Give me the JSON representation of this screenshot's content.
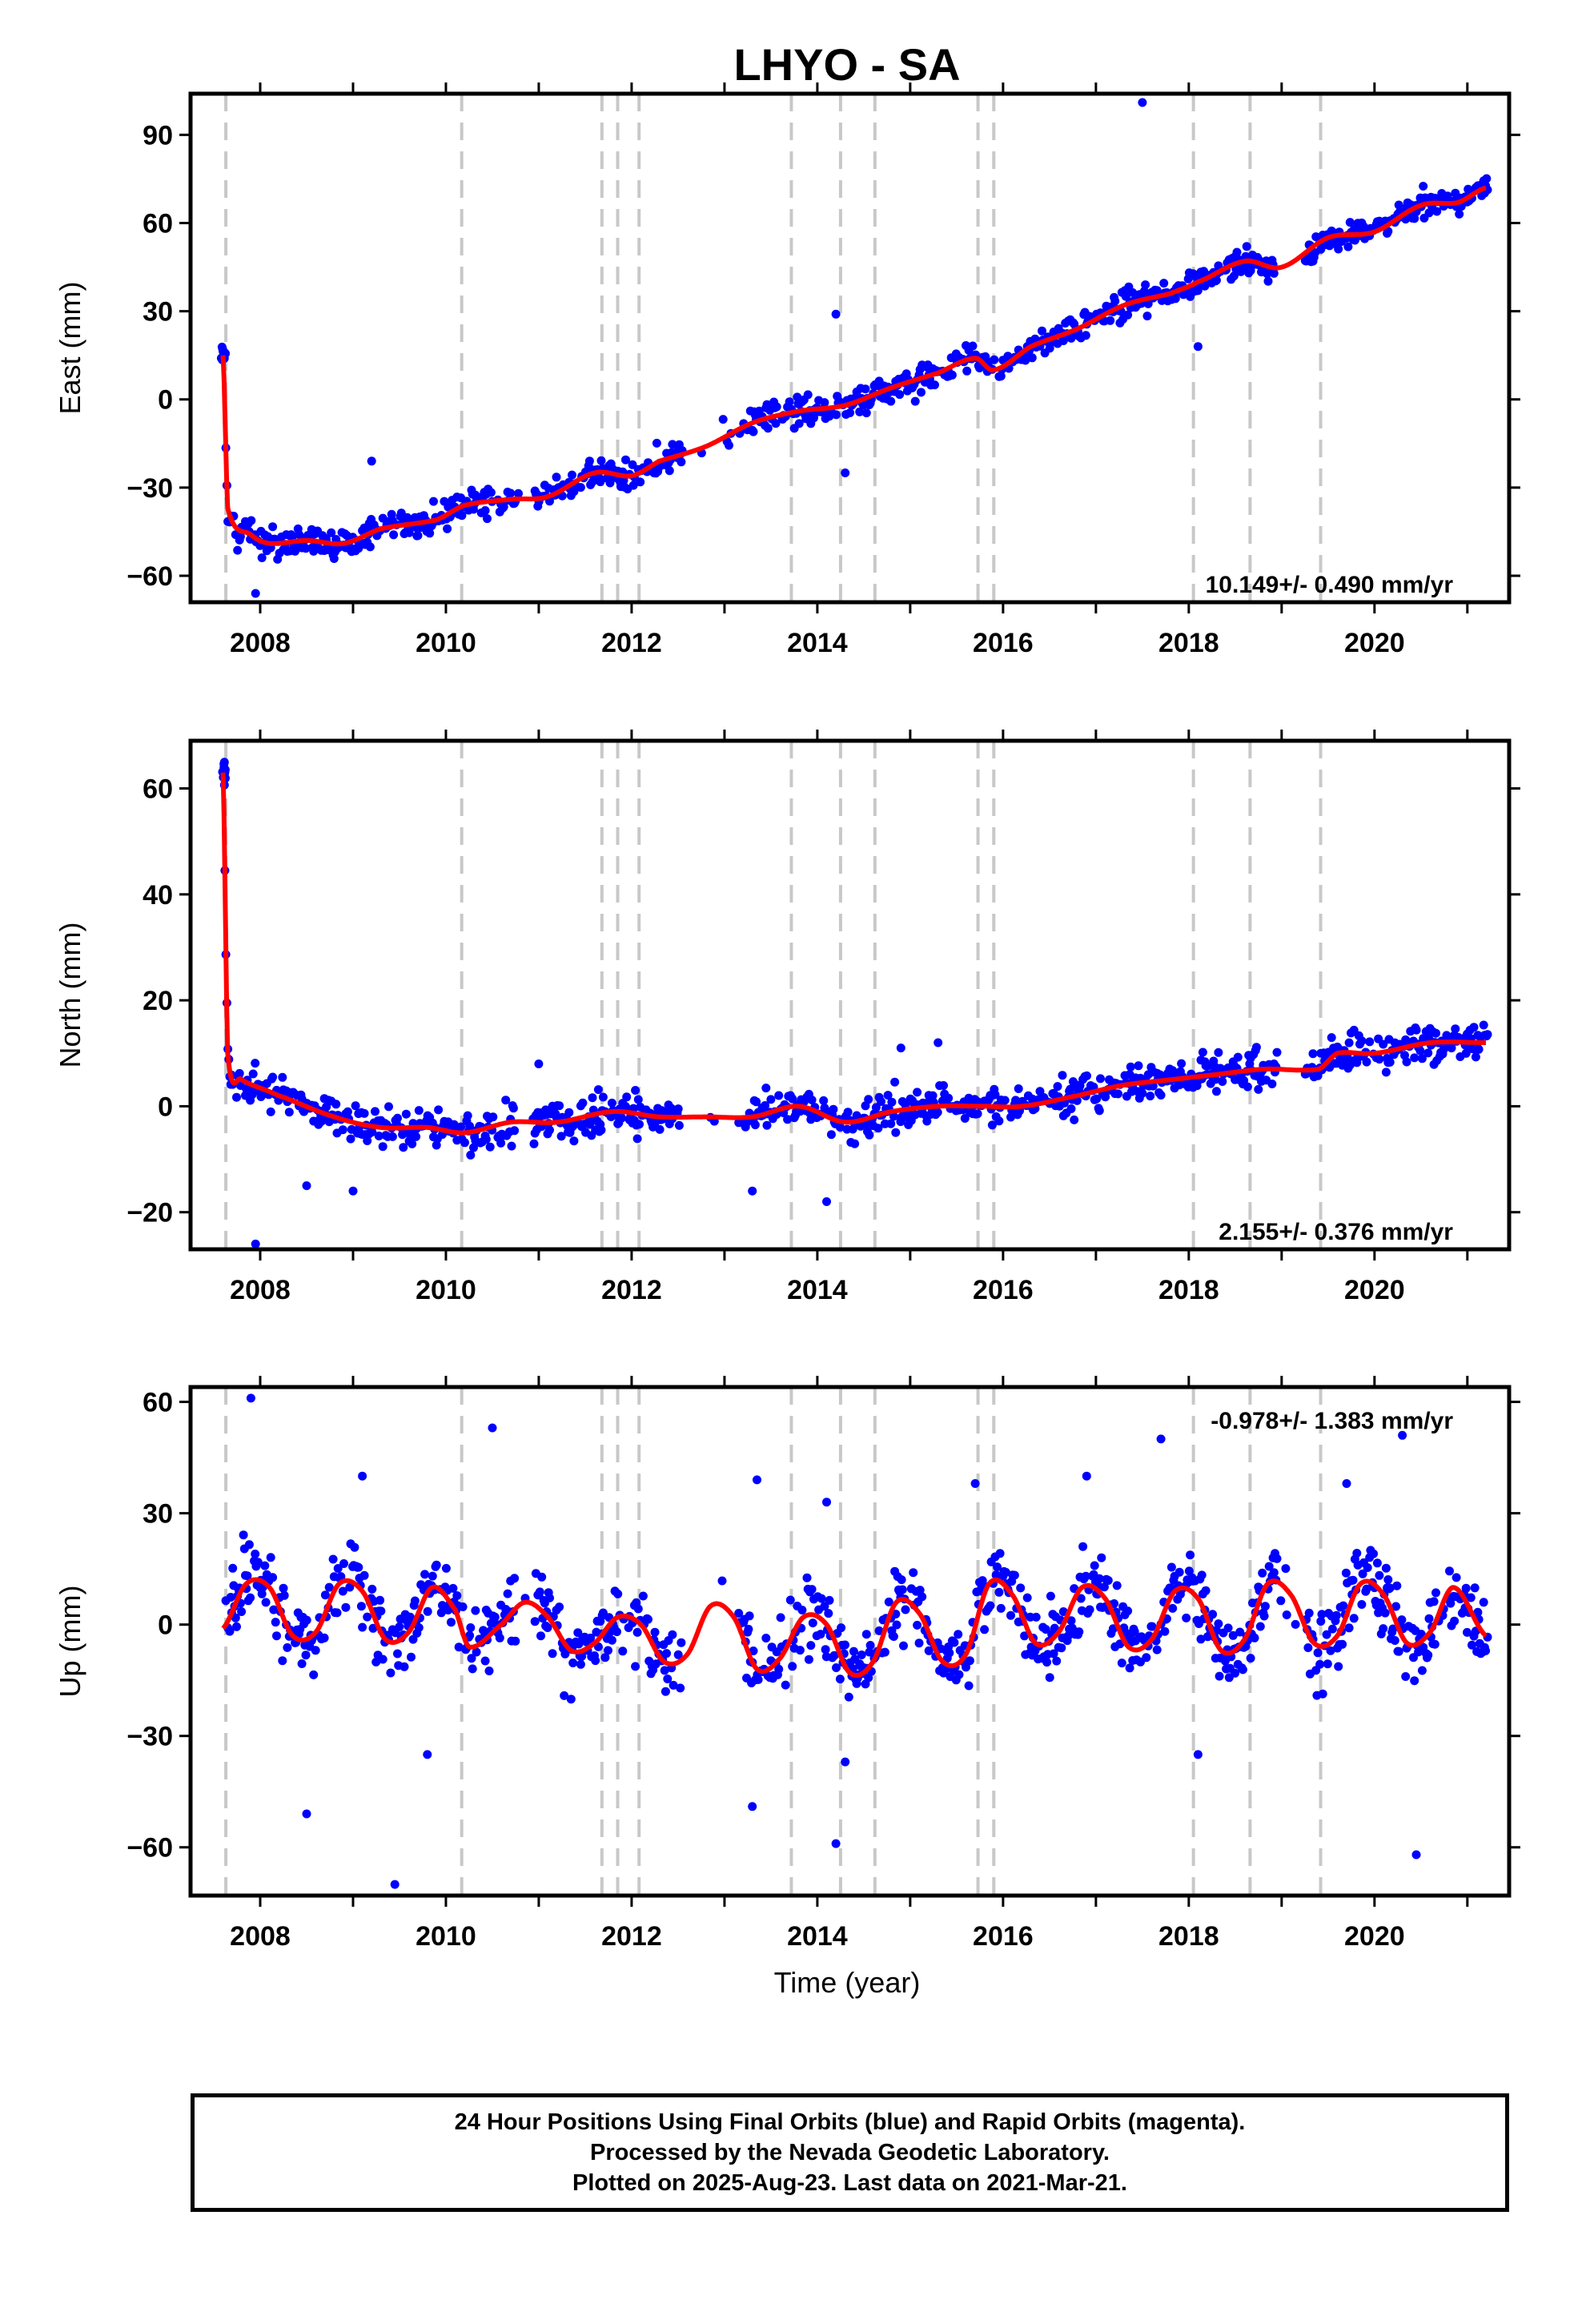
{
  "title": "LHYO - SA",
  "xlabel": "Time (year)",
  "footer": [
    "24 Hour Positions Using Final Orbits (blue) and Rapid Orbits (magenta).",
    "Processed by the Nevada Geodetic Laboratory.",
    "Plotted on 2025-Aug-23. Last data on 2021-Mar-21."
  ],
  "colors": {
    "points": "#0000ff",
    "model": "#ff0000",
    "events": "#c8c8c8",
    "frame": "#000000"
  },
  "chart_data": [
    {
      "type": "scatter",
      "component": "East",
      "ylabel": "East (mm)",
      "rate_text": "10.149+/- 0.490 mm/yr",
      "rate_position": "bottom-right",
      "xlim": [
        2007.25,
        2021.45
      ],
      "ylim": [
        -69,
        104
      ],
      "yticks": [
        90,
        60,
        30,
        0,
        -30,
        -60
      ],
      "yticklabels": [
        "90",
        "60",
        "30",
        "0",
        "−30",
        "−60"
      ],
      "xticks": [
        2008,
        2010,
        2012,
        2014,
        2016,
        2018,
        2020
      ],
      "event_lines": [
        2007.63,
        2010.17,
        2011.68,
        2011.85,
        2012.08,
        2013.72,
        2014.25,
        2014.62,
        2015.73,
        2015.9,
        2018.05,
        2018.66,
        2019.42
      ],
      "trend": {
        "rate": 10.149,
        "ref_year": 2014.0,
        "ref_value": 0.0
      },
      "model_knots": [
        [
          2007.6,
          15
        ],
        [
          2007.65,
          -37
        ],
        [
          2007.9,
          -46
        ],
        [
          2008.1,
          -49
        ],
        [
          2008.5,
          -48
        ],
        [
          2008.9,
          -49
        ],
        [
          2009.3,
          -44
        ],
        [
          2009.9,
          -41
        ],
        [
          2010.2,
          -36
        ],
        [
          2010.7,
          -34
        ],
        [
          2011.1,
          -33
        ],
        [
          2011.6,
          -25
        ],
        [
          2012.0,
          -26
        ],
        [
          2012.3,
          -21
        ],
        [
          2012.8,
          -16
        ],
        [
          2013.3,
          -8
        ],
        [
          2013.8,
          -4
        ],
        [
          2014.3,
          -2
        ],
        [
          2014.8,
          4
        ],
        [
          2015.3,
          9
        ],
        [
          2015.7,
          14
        ],
        [
          2015.9,
          10
        ],
        [
          2016.3,
          18
        ],
        [
          2016.8,
          24
        ],
        [
          2017.3,
          32
        ],
        [
          2017.8,
          36
        ],
        [
          2018.1,
          40
        ],
        [
          2018.6,
          47
        ],
        [
          2019.0,
          45
        ],
        [
          2019.5,
          55
        ],
        [
          2020.0,
          57
        ],
        [
          2020.5,
          66
        ],
        [
          2020.9,
          67
        ],
        [
          2021.2,
          72
        ]
      ],
      "noise_mm": 3.5,
      "outliers": [
        [
          2017.5,
          101
        ],
        [
          2014.2,
          29
        ],
        [
          2018.1,
          18
        ],
        [
          2014.3,
          -25
        ],
        [
          2007.95,
          -66
        ],
        [
          2009.2,
          -21
        ]
      ]
    },
    {
      "type": "scatter",
      "component": "North",
      "ylabel": "North (mm)",
      "rate_text": "2.155+/- 0.376 mm/yr",
      "rate_position": "bottom-right",
      "xlim": [
        2007.25,
        2021.45
      ],
      "ylim": [
        -27,
        69
      ],
      "yticks": [
        60,
        40,
        20,
        0,
        -20
      ],
      "yticklabels": [
        "60",
        "40",
        "20",
        "0",
        "−20"
      ],
      "xticks": [
        2008,
        2010,
        2012,
        2014,
        2016,
        2018,
        2020
      ],
      "event_lines": [
        2007.63,
        2010.17,
        2011.68,
        2011.85,
        2012.08,
        2013.72,
        2014.25,
        2014.62,
        2015.73,
        2015.9,
        2018.05,
        2018.66,
        2019.42
      ],
      "trend": {
        "rate": 2.155,
        "ref_year": 2014.0,
        "ref_value": 0.0
      },
      "model_knots": [
        [
          2007.6,
          63
        ],
        [
          2007.65,
          10
        ],
        [
          2007.8,
          5
        ],
        [
          2008.2,
          2
        ],
        [
          2008.8,
          -2
        ],
        [
          2009.3,
          -4
        ],
        [
          2009.8,
          -4
        ],
        [
          2010.2,
          -5
        ],
        [
          2010.7,
          -3
        ],
        [
          2011.2,
          -3
        ],
        [
          2011.8,
          -1
        ],
        [
          2012.3,
          -2
        ],
        [
          2012.8,
          -2
        ],
        [
          2013.3,
          -2
        ],
        [
          2013.8,
          0
        ],
        [
          2014.3,
          -3
        ],
        [
          2014.8,
          -1
        ],
        [
          2015.3,
          0
        ],
        [
          2015.8,
          0
        ],
        [
          2016.2,
          0
        ],
        [
          2016.8,
          2
        ],
        [
          2017.3,
          4
        ],
        [
          2017.8,
          5
        ],
        [
          2018.3,
          6
        ],
        [
          2018.8,
          7
        ],
        [
          2019.4,
          7
        ],
        [
          2019.6,
          10
        ],
        [
          2020.0,
          10
        ],
        [
          2020.6,
          12
        ],
        [
          2021.2,
          12
        ]
      ],
      "noise_mm": 2.5,
      "outliers": [
        [
          2007.95,
          -26
        ],
        [
          2014.1,
          -18
        ],
        [
          2013.3,
          -16
        ],
        [
          2009.0,
          -16
        ],
        [
          2008.5,
          -15
        ],
        [
          2014.9,
          11
        ],
        [
          2015.3,
          12
        ],
        [
          2011.0,
          8
        ]
      ]
    },
    {
      "type": "scatter",
      "component": "Up",
      "ylabel": "Up (mm)",
      "rate_text": "-0.978+/- 1.383 mm/yr",
      "rate_position": "top-right",
      "xlim": [
        2007.25,
        2021.45
      ],
      "ylim": [
        -73,
        64
      ],
      "yticks": [
        60,
        30,
        0,
        -30,
        -60
      ],
      "yticklabels": [
        "60",
        "30",
        "0",
        "−30",
        "−60"
      ],
      "xticks": [
        2008,
        2010,
        2012,
        2014,
        2016,
        2018,
        2020
      ],
      "event_lines": [
        2007.63,
        2010.17,
        2011.68,
        2011.85,
        2012.08,
        2013.72,
        2014.25,
        2014.62,
        2015.73,
        2015.9,
        2018.05,
        2018.66,
        2019.42
      ],
      "trend": {
        "rate": -0.978,
        "ref_year": 2014.0,
        "ref_value": 0.0
      },
      "model_knots": [
        [
          2007.6,
          -1
        ],
        [
          2007.85,
          11
        ],
        [
          2008.1,
          10
        ],
        [
          2008.35,
          -3
        ],
        [
          2008.6,
          -2
        ],
        [
          2008.85,
          11
        ],
        [
          2009.1,
          9
        ],
        [
          2009.35,
          -4
        ],
        [
          2009.6,
          -2
        ],
        [
          2009.85,
          10
        ],
        [
          2010.1,
          4
        ],
        [
          2010.25,
          -6
        ],
        [
          2010.6,
          0
        ],
        [
          2010.85,
          6
        ],
        [
          2011.1,
          2
        ],
        [
          2011.35,
          -7
        ],
        [
          2011.6,
          -5
        ],
        [
          2011.85,
          2
        ],
        [
          2012.1,
          0
        ],
        [
          2012.35,
          -10
        ],
        [
          2012.6,
          -8
        ],
        [
          2012.85,
          5
        ],
        [
          2013.1,
          2
        ],
        [
          2013.35,
          -12
        ],
        [
          2013.6,
          -9
        ],
        [
          2013.85,
          2
        ],
        [
          2014.1,
          0
        ],
        [
          2014.35,
          -13
        ],
        [
          2014.6,
          -10
        ],
        [
          2014.85,
          6
        ],
        [
          2015.1,
          3
        ],
        [
          2015.35,
          -10
        ],
        [
          2015.6,
          -8
        ],
        [
          2015.85,
          11
        ],
        [
          2016.1,
          8
        ],
        [
          2016.35,
          -5
        ],
        [
          2016.6,
          -2
        ],
        [
          2016.85,
          10
        ],
        [
          2017.1,
          7
        ],
        [
          2017.35,
          -6
        ],
        [
          2017.6,
          -4
        ],
        [
          2017.85,
          9
        ],
        [
          2018.1,
          7
        ],
        [
          2018.35,
          -7
        ],
        [
          2018.6,
          -4
        ],
        [
          2018.85,
          11
        ],
        [
          2019.1,
          8
        ],
        [
          2019.35,
          -5
        ],
        [
          2019.6,
          -3
        ],
        [
          2019.85,
          11
        ],
        [
          2020.1,
          8
        ],
        [
          2020.35,
          -5
        ],
        [
          2020.6,
          -2
        ],
        [
          2020.85,
          10
        ],
        [
          2021.2,
          -3
        ]
      ],
      "noise_mm": 7,
      "outliers": [
        [
          2007.9,
          61
        ],
        [
          2010.5,
          53
        ],
        [
          2017.7,
          50
        ],
        [
          2020.3,
          51
        ],
        [
          2013.35,
          39
        ],
        [
          2015.7,
          38
        ],
        [
          2009.1,
          40
        ],
        [
          2008.5,
          -51
        ],
        [
          2009.45,
          -70
        ],
        [
          2013.3,
          -49
        ],
        [
          2014.2,
          -59
        ],
        [
          2014.3,
          -37
        ],
        [
          2020.45,
          -62
        ],
        [
          2009.8,
          -35
        ],
        [
          2018.1,
          -35
        ],
        [
          2016.9,
          40
        ],
        [
          2019.7,
          38
        ],
        [
          2014.1,
          33
        ]
      ]
    }
  ]
}
